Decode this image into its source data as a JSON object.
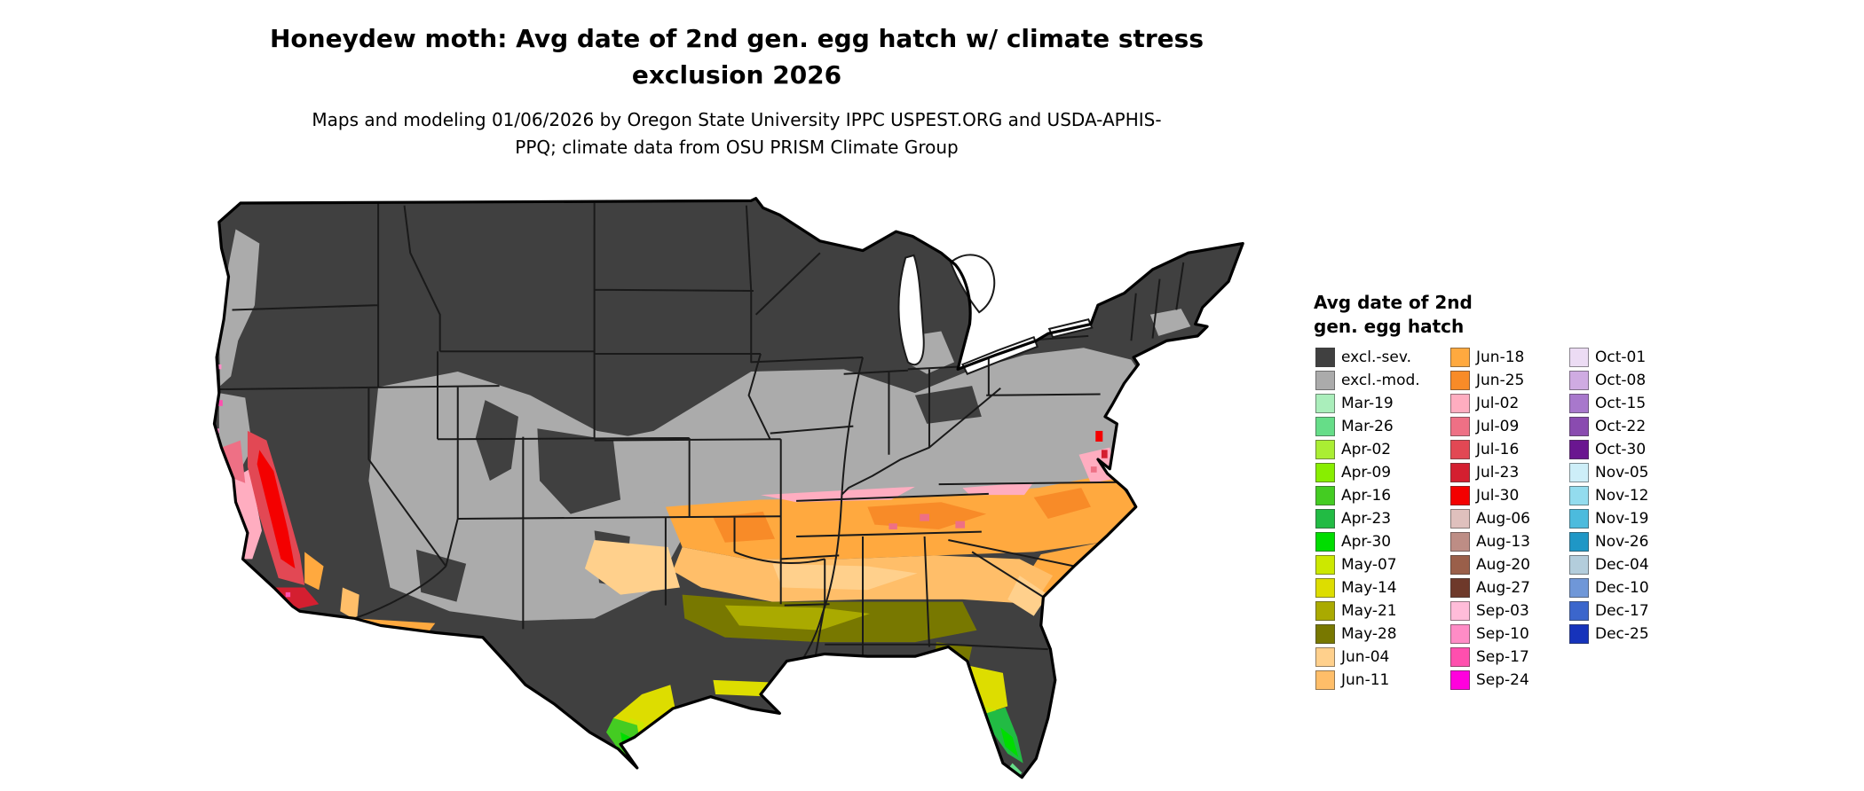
{
  "header": {
    "title": "Honeydew moth: Avg date of 2nd gen. egg hatch w/ climate stress exclusion 2026",
    "subtitle": "Maps and modeling 01/06/2026 by Oregon State University IPPC USPEST.ORG and USDA-APHIS-PPQ; climate data from OSU PRISM Climate Group"
  },
  "legend": {
    "title_line1": "Avg date of 2nd",
    "title_line2": "gen. egg hatch",
    "columns": [
      [
        {
          "label": "excl.-sev.",
          "key": "excl_sev"
        },
        {
          "label": "excl.-mod.",
          "key": "excl_mod"
        },
        {
          "label": "Mar-19",
          "key": "mar19"
        },
        {
          "label": "Mar-26",
          "key": "mar26"
        },
        {
          "label": "Apr-02",
          "key": "apr02"
        },
        {
          "label": "Apr-09",
          "key": "apr09"
        },
        {
          "label": "Apr-16",
          "key": "apr16"
        },
        {
          "label": "Apr-23",
          "key": "apr23"
        },
        {
          "label": "Apr-30",
          "key": "apr30"
        },
        {
          "label": "May-07",
          "key": "may07"
        },
        {
          "label": "May-14",
          "key": "may14"
        },
        {
          "label": "May-21",
          "key": "may21"
        },
        {
          "label": "May-28",
          "key": "may28"
        },
        {
          "label": "Jun-04",
          "key": "jun04"
        },
        {
          "label": "Jun-11",
          "key": "jun11"
        }
      ],
      [
        {
          "label": "Jun-18",
          "key": "jun18"
        },
        {
          "label": "Jun-25",
          "key": "jun25"
        },
        {
          "label": "Jul-02",
          "key": "jul02"
        },
        {
          "label": "Jul-09",
          "key": "jul09"
        },
        {
          "label": "Jul-16",
          "key": "jul16"
        },
        {
          "label": "Jul-23",
          "key": "jul23"
        },
        {
          "label": "Jul-30",
          "key": "jul30"
        },
        {
          "label": "Aug-06",
          "key": "aug06"
        },
        {
          "label": "Aug-13",
          "key": "aug13"
        },
        {
          "label": "Aug-20",
          "key": "aug20"
        },
        {
          "label": "Aug-27",
          "key": "aug27"
        },
        {
          "label": "Sep-03",
          "key": "sep03"
        },
        {
          "label": "Sep-10",
          "key": "sep10"
        },
        {
          "label": "Sep-17",
          "key": "sep17"
        },
        {
          "label": "Sep-24",
          "key": "sep24"
        }
      ],
      [
        {
          "label": "Oct-01",
          "key": "oct01"
        },
        {
          "label": "Oct-08",
          "key": "oct08"
        },
        {
          "label": "Oct-15",
          "key": "oct15"
        },
        {
          "label": "Oct-22",
          "key": "oct22"
        },
        {
          "label": "Oct-30",
          "key": "oct30"
        },
        {
          "label": "Nov-05",
          "key": "nov05"
        },
        {
          "label": "Nov-12",
          "key": "nov12"
        },
        {
          "label": "Nov-19",
          "key": "nov19"
        },
        {
          "label": "Nov-26",
          "key": "nov26"
        },
        {
          "label": "Dec-04",
          "key": "dec04"
        },
        {
          "label": "Dec-10",
          "key": "dec10"
        },
        {
          "label": "Dec-17",
          "key": "dec17"
        },
        {
          "label": "Dec-25",
          "key": "dec25"
        }
      ]
    ]
  },
  "palette": {
    "excl_sev": "#404040",
    "excl_mod": "#ababab",
    "mar19": "#aaeebb",
    "mar26": "#66dd88",
    "apr02": "#aaee33",
    "apr09": "#88ee00",
    "apr16": "#44cc22",
    "apr23": "#22bb44",
    "apr30": "#00dd00",
    "may07": "#cce800",
    "may14": "#dddd00",
    "may21": "#aaaa00",
    "may28": "#787800",
    "jun04": "#ffd08c",
    "jun11": "#ffbe69",
    "jun18": "#ffa93f",
    "jun25": "#f88b28",
    "jul02": "#ffadc0",
    "jul09": "#ee7085",
    "jul16": "#e24854",
    "jul23": "#d41f30",
    "jul30": "#f40000",
    "aug06": "#dfc0bd",
    "aug13": "#bd8d85",
    "aug20": "#9a5f4a",
    "aug27": "#6e392a",
    "sep03": "#ffbcd9",
    "sep10": "#ff8cc6",
    "sep17": "#ff4fae",
    "sep24": "#ff00dd",
    "oct01": "#ecdcf4",
    "oct08": "#cfabe2",
    "oct15": "#a878cc",
    "oct22": "#8a4bb0",
    "oct30": "#6a1690",
    "nov05": "#cdeef8",
    "nov12": "#93dcee",
    "nov19": "#4cbbdd",
    "nov26": "#1f97c6",
    "dec04": "#b3cddc",
    "dec10": "#6f97d8",
    "dec17": "#3b66cc",
    "dec25": "#1633bb"
  }
}
